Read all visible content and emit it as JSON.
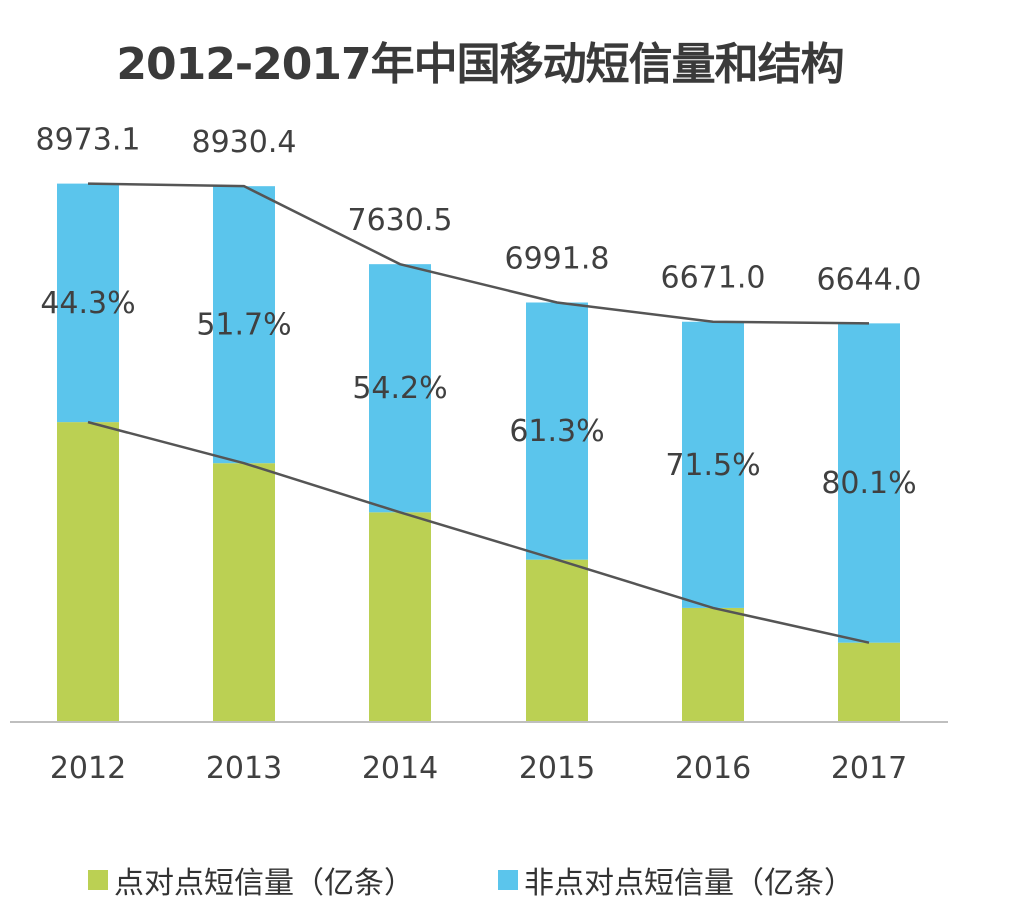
{
  "chart_data": {
    "type": "bar",
    "stacked": true,
    "title": "2012-2017年中国移动短信量和结构",
    "categories": [
      "2012",
      "2013",
      "2014",
      "2015",
      "2016",
      "2017"
    ],
    "totals": [
      "8973.1",
      "8930.4",
      "7630.5",
      "6991.8",
      "6671.0",
      "6644.0"
    ],
    "series": [
      {
        "name": "点对点短信量（亿条）",
        "color": "#bbd053",
        "values": [
          4998.0,
          4313.4,
          3494.8,
          2705.8,
          1901.2,
          1322.2
        ]
      },
      {
        "name": "非点对点短信量（亿条）",
        "color": "#5bc5ec",
        "values": [
          3975.1,
          4617.0,
          4135.7,
          4286.0,
          4769.8,
          5321.8
        ],
        "share_labels": [
          "44.3%",
          "51.7%",
          "54.2%",
          "61.3%",
          "71.5%",
          "80.1%"
        ]
      }
    ],
    "ylim": [
      0,
      9000
    ],
    "grid": false,
    "connector_lines": true,
    "legend_position": "bottom"
  }
}
